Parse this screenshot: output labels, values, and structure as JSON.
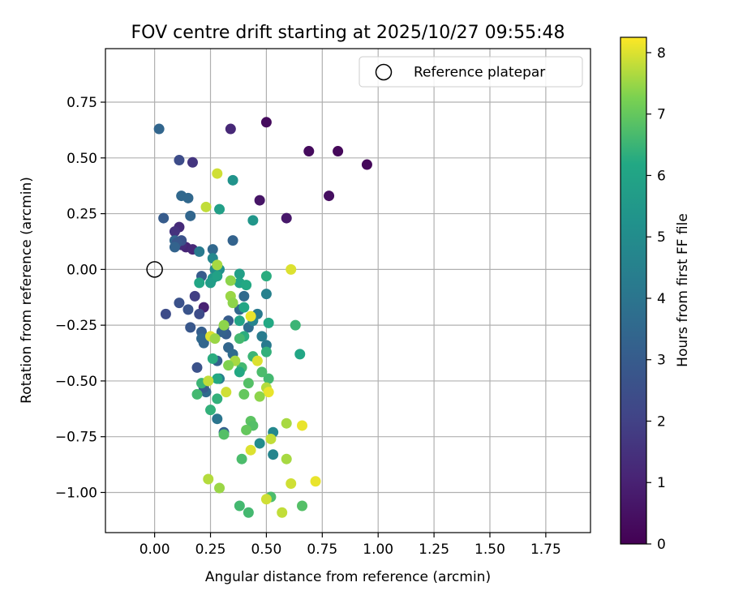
{
  "chart_data": {
    "type": "scatter",
    "title": "FOV centre drift starting at 2025/10/27 09:55:48",
    "xlabel": "Angular distance from reference (arcmin)",
    "ylabel": "Rotation from reference (arcmin)",
    "xlim": [
      -0.22,
      1.95
    ],
    "ylim": [
      -1.18,
      0.99
    ],
    "grid": true,
    "legend": {
      "location": "top-right",
      "entries": [
        "Reference platepar"
      ]
    },
    "xticks": [
      "0.00",
      "0.25",
      "0.50",
      "0.75",
      "1.00",
      "1.25",
      "1.50",
      "1.75"
    ],
    "yticks": [
      "0.75",
      "0.50",
      "0.25",
      "0.00",
      "−0.25",
      "−0.50",
      "−0.75",
      "−1.00"
    ],
    "colorbar": {
      "label": "Hours from first FF file",
      "colormap": "viridis",
      "range": [
        0,
        8.25
      ],
      "ticks": [
        "0",
        "1",
        "2",
        "3",
        "4",
        "5",
        "6",
        "7",
        "8"
      ]
    },
    "reference": {
      "x": 0.0,
      "y": 0.0,
      "label": "Reference platepar"
    },
    "points": [
      {
        "x": 0.5,
        "y": 0.66,
        "h": 0.3
      },
      {
        "x": 0.82,
        "y": 0.53,
        "h": 0.2
      },
      {
        "x": 0.69,
        "y": 0.53,
        "h": 0.3
      },
      {
        "x": 0.95,
        "y": 0.47,
        "h": 0.2
      },
      {
        "x": 0.78,
        "y": 0.33,
        "h": 0.4
      },
      {
        "x": 0.47,
        "y": 0.31,
        "h": 0.6
      },
      {
        "x": 0.59,
        "y": 0.23,
        "h": 0.7
      },
      {
        "x": 0.34,
        "y": 0.63,
        "h": 1.2
      },
      {
        "x": 0.17,
        "y": 0.48,
        "h": 1.6
      },
      {
        "x": 0.11,
        "y": 0.19,
        "h": 1.3
      },
      {
        "x": 0.09,
        "y": 0.17,
        "h": 1.5
      },
      {
        "x": 0.14,
        "y": 0.1,
        "h": 1.1
      },
      {
        "x": 0.17,
        "y": 0.09,
        "h": 1.2
      },
      {
        "x": 0.12,
        "y": 0.11,
        "h": 1.3
      },
      {
        "x": 0.22,
        "y": -0.17,
        "h": 1.0
      },
      {
        "x": 0.18,
        "y": -0.12,
        "h": 1.9
      },
      {
        "x": 0.11,
        "y": 0.49,
        "h": 2.4
      },
      {
        "x": 0.02,
        "y": 0.63,
        "h": 3.4
      },
      {
        "x": 0.12,
        "y": 0.33,
        "h": 3.5
      },
      {
        "x": 0.15,
        "y": 0.32,
        "h": 3.5
      },
      {
        "x": 0.04,
        "y": 0.23,
        "h": 3.0
      },
      {
        "x": 0.16,
        "y": 0.24,
        "h": 3.4
      },
      {
        "x": 0.09,
        "y": 0.13,
        "h": 3.4
      },
      {
        "x": 0.12,
        "y": 0.13,
        "h": 2.6
      },
      {
        "x": 0.1,
        "y": 0.12,
        "h": 2.8
      },
      {
        "x": 0.09,
        "y": 0.1,
        "h": 3.3
      },
      {
        "x": 0.26,
        "y": 0.09,
        "h": 3.5
      },
      {
        "x": 0.2,
        "y": 0.08,
        "h": 4.2
      },
      {
        "x": 0.35,
        "y": 0.13,
        "h": 3.3
      },
      {
        "x": 0.05,
        "y": -0.2,
        "h": 2.4
      },
      {
        "x": 0.11,
        "y": -0.15,
        "h": 2.6
      },
      {
        "x": 0.15,
        "y": -0.18,
        "h": 2.7
      },
      {
        "x": 0.2,
        "y": -0.2,
        "h": 2.4
      },
      {
        "x": 0.16,
        "y": -0.26,
        "h": 2.8
      },
      {
        "x": 0.21,
        "y": -0.28,
        "h": 3.1
      },
      {
        "x": 0.21,
        "y": -0.03,
        "h": 3.0
      },
      {
        "x": 0.21,
        "y": -0.31,
        "h": 3.5
      },
      {
        "x": 0.22,
        "y": -0.33,
        "h": 3.4
      },
      {
        "x": 0.19,
        "y": -0.44,
        "h": 2.6
      },
      {
        "x": 0.23,
        "y": -0.55,
        "h": 3.6
      },
      {
        "x": 0.22,
        "y": -0.53,
        "h": 3.0
      },
      {
        "x": 0.28,
        "y": -0.41,
        "h": 3.2
      },
      {
        "x": 0.31,
        "y": -0.26,
        "h": 3.2
      },
      {
        "x": 0.33,
        "y": -0.23,
        "h": 3.0
      },
      {
        "x": 0.32,
        "y": -0.29,
        "h": 3.1
      },
      {
        "x": 0.3,
        "y": -0.28,
        "h": 3.3
      },
      {
        "x": 0.33,
        "y": -0.35,
        "h": 3.4
      },
      {
        "x": 0.35,
        "y": -0.38,
        "h": 3.6
      },
      {
        "x": 0.38,
        "y": -0.18,
        "h": 3.5
      },
      {
        "x": 0.4,
        "y": -0.12,
        "h": 3.6
      },
      {
        "x": 0.42,
        "y": -0.26,
        "h": 3.7
      },
      {
        "x": 0.31,
        "y": -0.73,
        "h": 3.2
      },
      {
        "x": 0.28,
        "y": -0.67,
        "h": 4.0
      },
      {
        "x": 0.29,
        "y": -0.49,
        "h": 4.4
      },
      {
        "x": 0.46,
        "y": -0.2,
        "h": 4.2
      },
      {
        "x": 0.48,
        "y": -0.3,
        "h": 4.3
      },
      {
        "x": 0.5,
        "y": -0.11,
        "h": 4.5
      },
      {
        "x": 0.5,
        "y": -0.34,
        "h": 4.2
      },
      {
        "x": 0.44,
        "y": -0.23,
        "h": 4.6
      },
      {
        "x": 0.53,
        "y": -0.83,
        "h": 4.7
      },
      {
        "x": 0.53,
        "y": -0.73,
        "h": 4.8
      },
      {
        "x": 0.47,
        "y": -0.78,
        "h": 5.0
      },
      {
        "x": 0.26,
        "y": 0.05,
        "h": 4.8
      },
      {
        "x": 0.27,
        "y": 0.0,
        "h": 5.0
      },
      {
        "x": 0.29,
        "y": 0.0,
        "h": 5.2
      },
      {
        "x": 0.35,
        "y": 0.4,
        "h": 5.3
      },
      {
        "x": 0.44,
        "y": 0.22,
        "h": 5.4
      },
      {
        "x": 0.29,
        "y": 0.27,
        "h": 5.8
      },
      {
        "x": 0.26,
        "y": -0.04,
        "h": 5.5
      },
      {
        "x": 0.25,
        "y": -0.06,
        "h": 5.7
      },
      {
        "x": 0.28,
        "y": -0.03,
        "h": 5.9
      },
      {
        "x": 0.2,
        "y": -0.06,
        "h": 6.1
      },
      {
        "x": 0.38,
        "y": -0.02,
        "h": 5.8
      },
      {
        "x": 0.38,
        "y": -0.06,
        "h": 6.0
      },
      {
        "x": 0.41,
        "y": -0.07,
        "h": 6.2
      },
      {
        "x": 0.4,
        "y": -0.17,
        "h": 6.1
      },
      {
        "x": 0.38,
        "y": -0.23,
        "h": 6.0
      },
      {
        "x": 0.5,
        "y": -0.03,
        "h": 6.3
      },
      {
        "x": 0.51,
        "y": -0.24,
        "h": 6.2
      },
      {
        "x": 0.63,
        "y": -0.25,
        "h": 6.5
      },
      {
        "x": 0.65,
        "y": -0.38,
        "h": 6.1
      },
      {
        "x": 0.5,
        "y": -0.37,
        "h": 6.4
      },
      {
        "x": 0.4,
        "y": -0.3,
        "h": 6.3
      },
      {
        "x": 0.38,
        "y": -0.31,
        "h": 6.6
      },
      {
        "x": 0.44,
        "y": -0.39,
        "h": 6.5
      },
      {
        "x": 0.39,
        "y": -0.44,
        "h": 6.6
      },
      {
        "x": 0.38,
        "y": -0.46,
        "h": 6.2
      },
      {
        "x": 0.26,
        "y": -0.4,
        "h": 6.3
      },
      {
        "x": 0.28,
        "y": -0.49,
        "h": 6.2
      },
      {
        "x": 0.21,
        "y": -0.51,
        "h": 6.5
      },
      {
        "x": 0.19,
        "y": -0.56,
        "h": 6.6
      },
      {
        "x": 0.28,
        "y": -0.58,
        "h": 6.4
      },
      {
        "x": 0.25,
        "y": -0.63,
        "h": 6.4
      },
      {
        "x": 0.42,
        "y": -0.51,
        "h": 6.8
      },
      {
        "x": 0.51,
        "y": -0.49,
        "h": 6.6
      },
      {
        "x": 0.48,
        "y": -0.46,
        "h": 6.7
      },
      {
        "x": 0.4,
        "y": -0.56,
        "h": 7.0
      },
      {
        "x": 0.43,
        "y": -0.68,
        "h": 6.9
      },
      {
        "x": 0.44,
        "y": -0.7,
        "h": 6.8
      },
      {
        "x": 0.41,
        "y": -0.72,
        "h": 7.0
      },
      {
        "x": 0.31,
        "y": -0.74,
        "h": 6.8
      },
      {
        "x": 0.39,
        "y": -0.85,
        "h": 6.7
      },
      {
        "x": 0.38,
        "y": -1.06,
        "h": 6.6
      },
      {
        "x": 0.42,
        "y": -1.09,
        "h": 6.6
      },
      {
        "x": 0.52,
        "y": -1.02,
        "h": 6.7
      },
      {
        "x": 0.66,
        "y": -1.06,
        "h": 6.8
      },
      {
        "x": 0.61,
        "y": 0.0,
        "h": 8.0
      },
      {
        "x": 0.28,
        "y": 0.43,
        "h": 7.9
      },
      {
        "x": 0.23,
        "y": 0.28,
        "h": 7.8
      },
      {
        "x": 0.28,
        "y": 0.02,
        "h": 7.6
      },
      {
        "x": 0.31,
        "y": -0.25,
        "h": 7.4
      },
      {
        "x": 0.34,
        "y": -0.12,
        "h": 7.5
      },
      {
        "x": 0.35,
        "y": -0.15,
        "h": 7.4
      },
      {
        "x": 0.34,
        "y": -0.05,
        "h": 7.4
      },
      {
        "x": 0.43,
        "y": -0.21,
        "h": 8.1
      },
      {
        "x": 0.25,
        "y": -0.3,
        "h": 8.0
      },
      {
        "x": 0.27,
        "y": -0.31,
        "h": 7.5
      },
      {
        "x": 0.36,
        "y": -0.41,
        "h": 7.6
      },
      {
        "x": 0.33,
        "y": -0.43,
        "h": 7.3
      },
      {
        "x": 0.46,
        "y": -0.41,
        "h": 8.0
      },
      {
        "x": 0.24,
        "y": -0.5,
        "h": 7.8
      },
      {
        "x": 0.32,
        "y": -0.55,
        "h": 7.9
      },
      {
        "x": 0.5,
        "y": -0.53,
        "h": 7.7
      },
      {
        "x": 0.51,
        "y": -0.55,
        "h": 8.1
      },
      {
        "x": 0.47,
        "y": -0.57,
        "h": 7.4
      },
      {
        "x": 0.59,
        "y": -0.69,
        "h": 7.6
      },
      {
        "x": 0.66,
        "y": -0.7,
        "h": 8.1
      },
      {
        "x": 0.52,
        "y": -0.76,
        "h": 7.8
      },
      {
        "x": 0.43,
        "y": -0.81,
        "h": 8.0
      },
      {
        "x": 0.59,
        "y": -0.85,
        "h": 7.6
      },
      {
        "x": 0.24,
        "y": -0.94,
        "h": 7.7
      },
      {
        "x": 0.29,
        "y": -0.98,
        "h": 7.5
      },
      {
        "x": 0.61,
        "y": -0.96,
        "h": 7.9
      },
      {
        "x": 0.72,
        "y": -0.95,
        "h": 8.1
      },
      {
        "x": 0.5,
        "y": -1.03,
        "h": 7.9
      },
      {
        "x": 0.57,
        "y": -1.09,
        "h": 7.8
      }
    ]
  }
}
